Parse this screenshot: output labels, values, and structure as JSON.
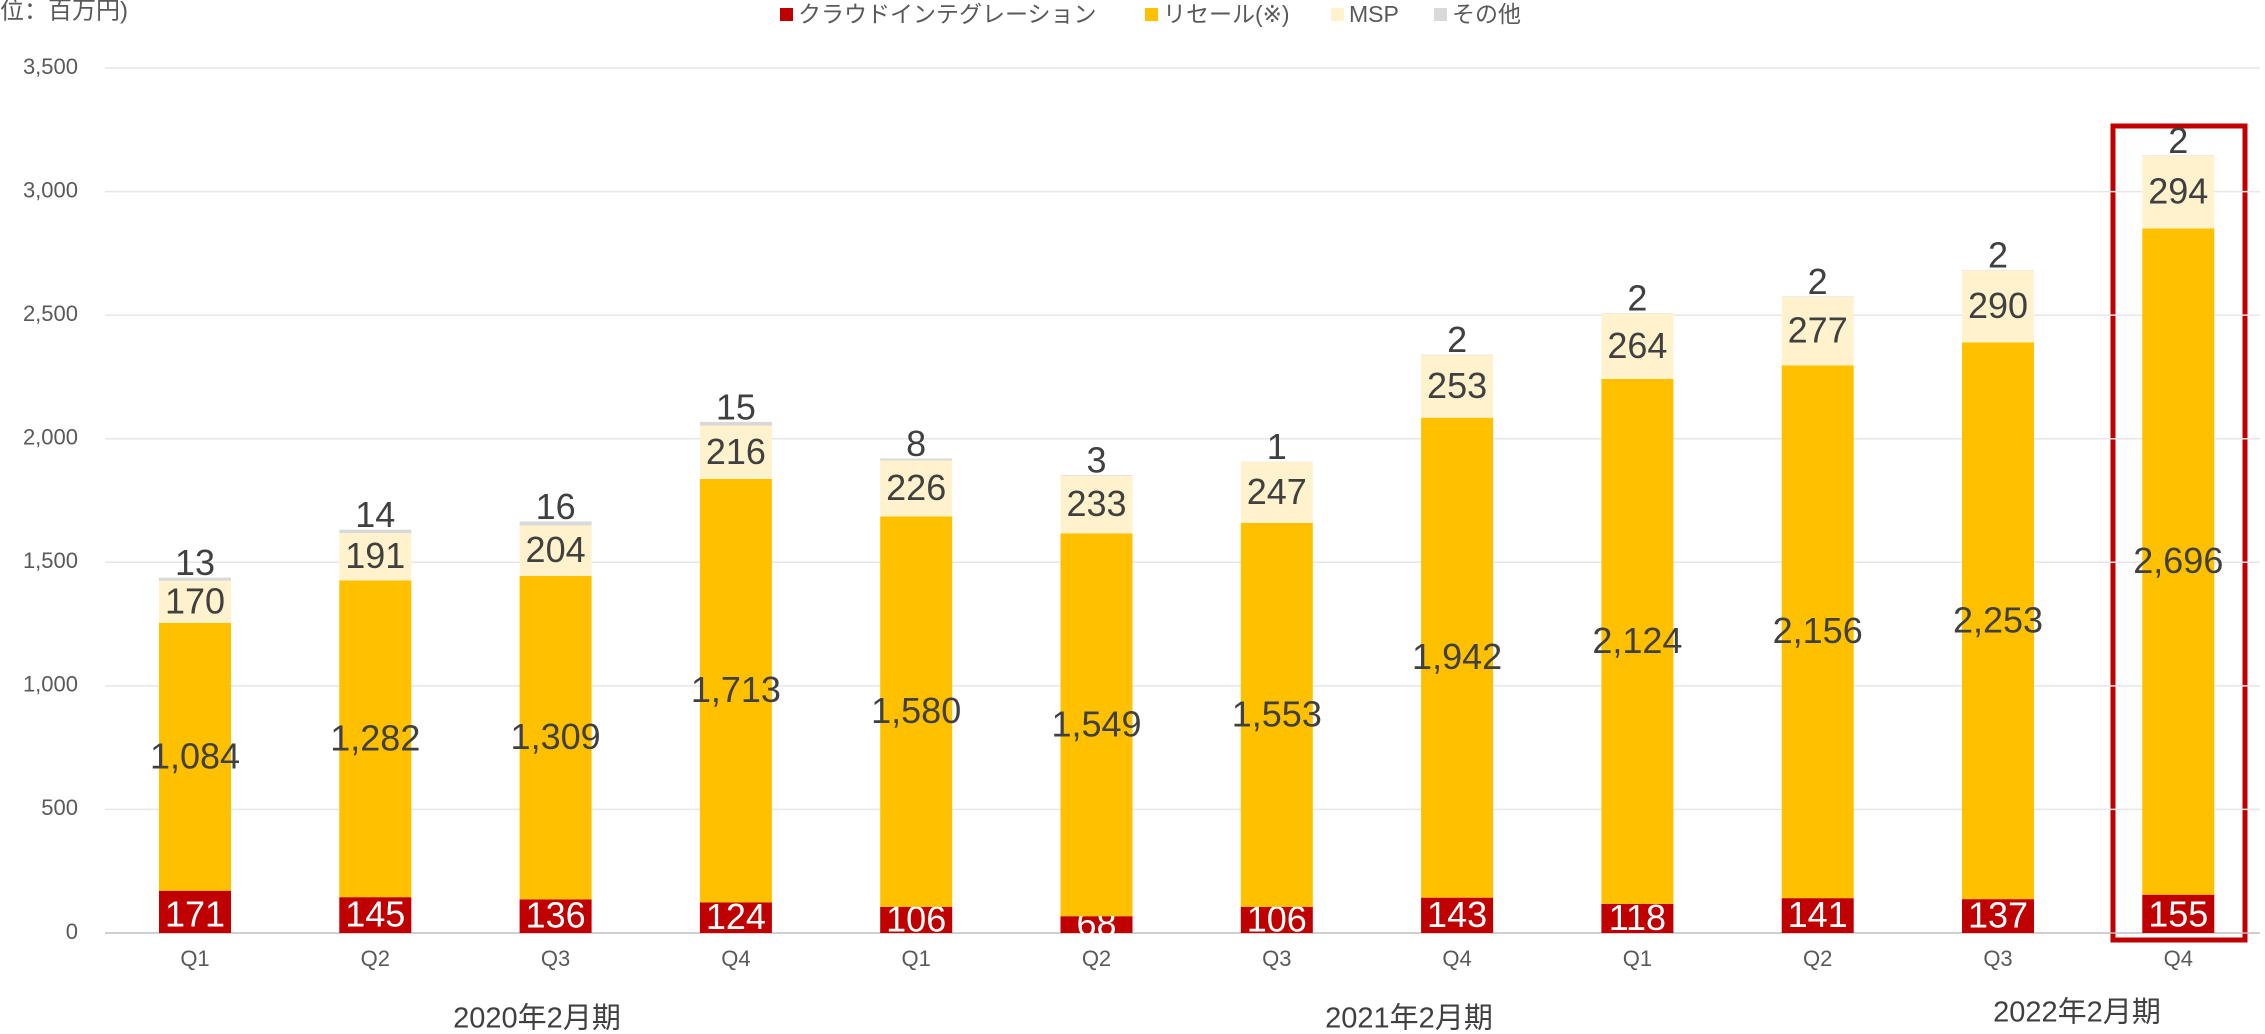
{
  "chart_data": {
    "type": "stacked_bar",
    "unit_label": "位：百万円)",
    "categories": [
      "Q1",
      "Q2",
      "Q3",
      "Q4",
      "Q1",
      "Q2",
      "Q3",
      "Q4",
      "Q1",
      "Q2",
      "Q3",
      "Q4"
    ],
    "groups": [
      "2020年2月期",
      "2021年2月期",
      "2022年2月期"
    ],
    "series": [
      {
        "name": "クラウドインテグレーション",
        "color": "#c00000",
        "values": [
          171,
          145,
          136,
          124,
          106,
          68,
          106,
          143,
          118,
          141,
          137,
          155
        ]
      },
      {
        "name": "リセール(※)",
        "color": "#ffc000",
        "values": [
          1084,
          1282,
          1309,
          1713,
          1580,
          1549,
          1553,
          1942,
          2124,
          2156,
          2253,
          2696
        ],
        "value_labels": [
          "1,084",
          "1,282",
          "1,309",
          "1,713",
          "1,580",
          "1,549",
          "1,553",
          "1,942",
          "2,124",
          "2,156",
          "2,253",
          "2,696"
        ]
      },
      {
        "name": "MSP",
        "color": "#fff2cc",
        "values": [
          170,
          191,
          204,
          216,
          226,
          233,
          247,
          253,
          264,
          277,
          290,
          294
        ]
      },
      {
        "name": "その他",
        "color": "#d9d9d9",
        "values": [
          13,
          14,
          16,
          15,
          8,
          3,
          1,
          2,
          2,
          2,
          2,
          2
        ]
      }
    ],
    "ylim": [
      0,
      3500
    ],
    "yticks": [
      0,
      500,
      {
        "value": 1000,
        "label": "1,000"
      },
      {
        "value": 1500,
        "label": "1,500"
      },
      {
        "value": 2000,
        "label": "2,000"
      },
      {
        "value": 2500,
        "label": "2,500"
      },
      {
        "value": 3000,
        "label": "3,000"
      },
      {
        "value": 3500,
        "label": "3,500"
      }
    ],
    "grid": true
  }
}
